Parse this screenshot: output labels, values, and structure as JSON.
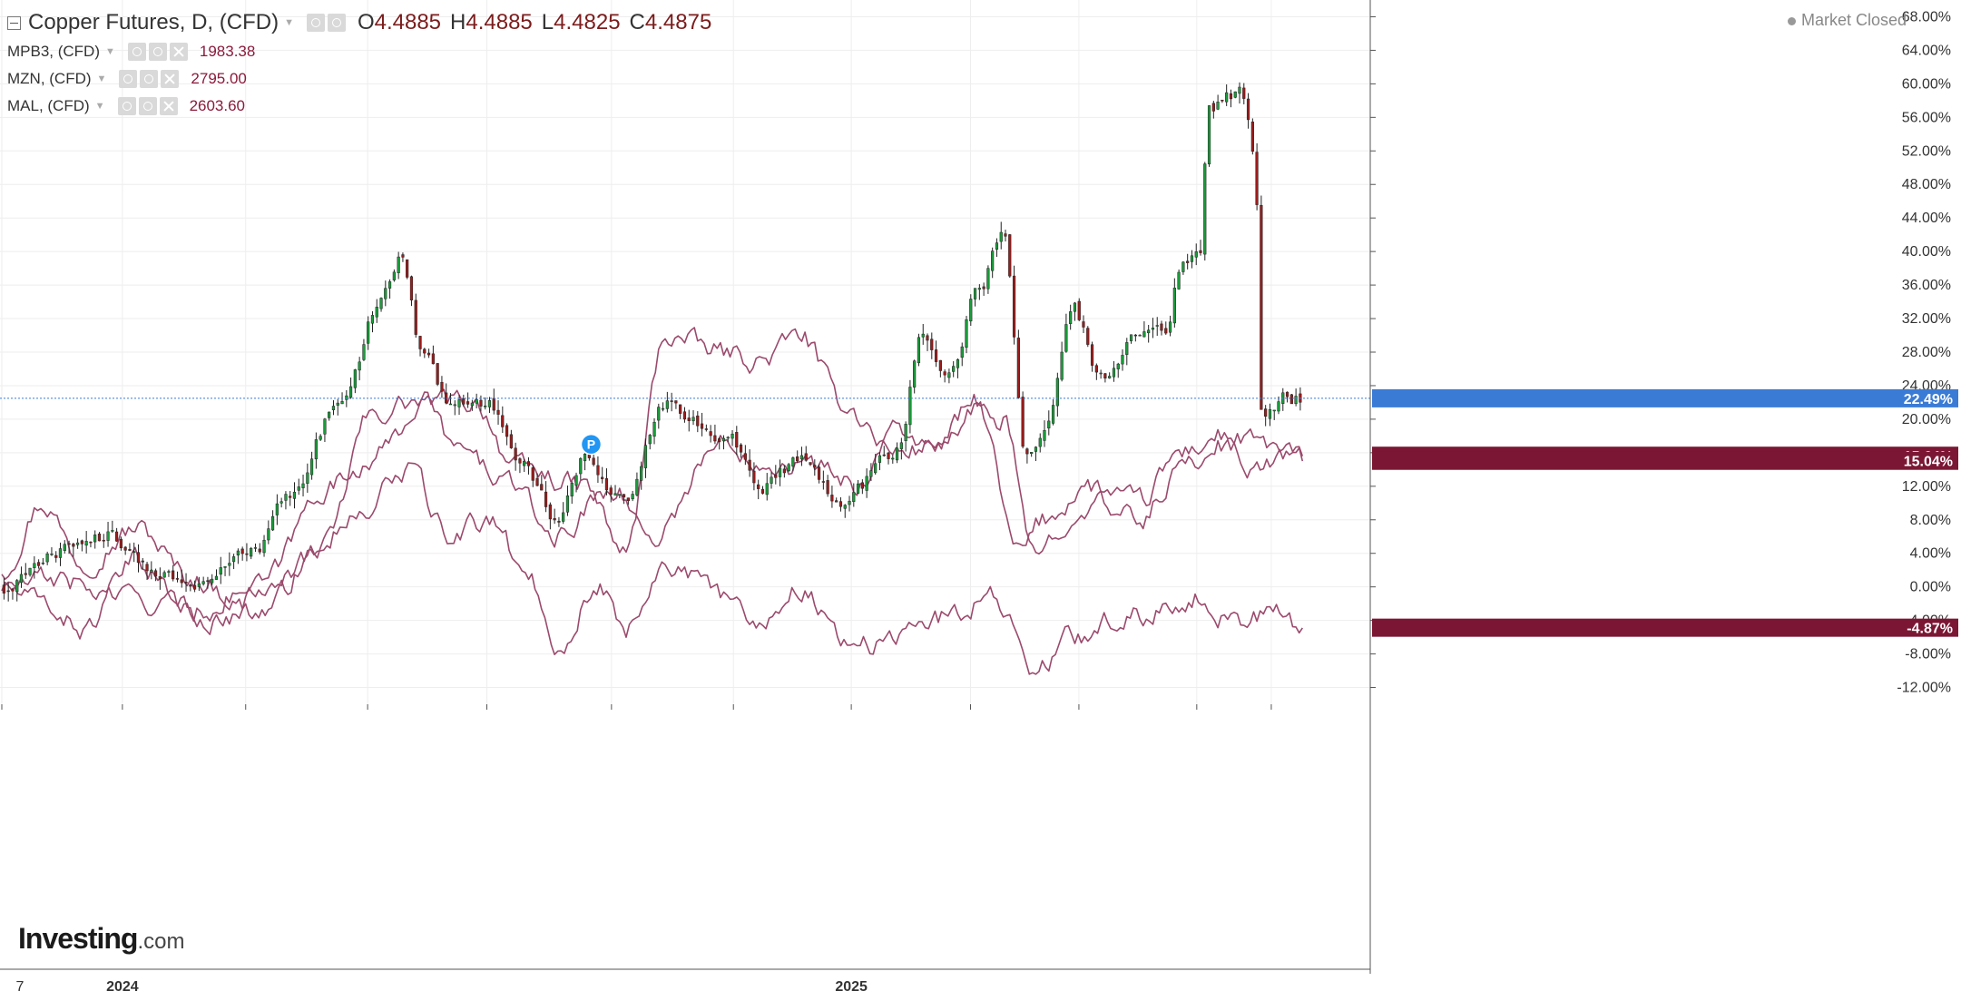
{
  "legend": {
    "main": {
      "symbol": "Copper Futures, D, (CFD)",
      "o_label": "O",
      "o": "4.4885",
      "h_label": "H",
      "h": "4.4885",
      "l_label": "L",
      "l": "4.4825",
      "c_label": "C",
      "c": "4.4875"
    },
    "overlays": [
      {
        "symbol": "MPB3, (CFD)",
        "value": "1983.38"
      },
      {
        "symbol": "MZN, (CFD)",
        "value": "2795.00"
      },
      {
        "symbol": "MAL, (CFD)",
        "value": "2603.60"
      }
    ]
  },
  "market_status": "Market Closed",
  "branding": {
    "logo_main": "Investing",
    "logo_suffix": ".com"
  },
  "icons": {
    "collapse": "collapse-icon",
    "eye": "eye-icon",
    "settings": "gear-icon",
    "remove": "close-icon",
    "dropdown": "chevron-down-icon",
    "marker": "p-marker-icon"
  },
  "colors": {
    "up": "#1a9c3a",
    "down": "#9c1c1c",
    "overlay": "#9b4a6c",
    "current_price": "#3a7bd5",
    "axis_tag": "#7b1734"
  },
  "chart_data": {
    "type": "line",
    "ylim": [
      -14,
      70
    ],
    "y_ticks": [
      "68.00%",
      "64.00%",
      "60.00%",
      "56.00%",
      "52.00%",
      "48.00%",
      "44.00%",
      "40.00%",
      "36.00%",
      "32.00%",
      "28.00%",
      "24.00%",
      "20.00%",
      "16.00%",
      "12.00%",
      "8.00%",
      "4.00%",
      "0.00%",
      "-4.00%",
      "-8.00%",
      "-12.00%"
    ],
    "x_tick_labels": [
      "7",
      "2024",
      "2025"
    ],
    "x_ticks": [
      {
        "t": 0,
        "label": "7"
      },
      {
        "t": 0.089,
        "label": "2024"
      },
      {
        "t": 0.18,
        "label": ""
      },
      {
        "t": 0.27,
        "label": ""
      },
      {
        "t": 0.358,
        "label": ""
      },
      {
        "t": 0.45,
        "label": ""
      },
      {
        "t": 0.54,
        "label": ""
      },
      {
        "t": 0.627,
        "label": "2025"
      },
      {
        "t": 0.715,
        "label": ""
      },
      {
        "t": 0.795,
        "label": ""
      },
      {
        "t": 0.882,
        "label": ""
      },
      {
        "t": 0.937,
        "label": ""
      }
    ],
    "price_line": 22.49,
    "axis_tags": [
      {
        "value": 22.49,
        "label": "22.49%",
        "color": "#3a7bd5"
      },
      {
        "value": 15.64,
        "label": "15.64%",
        "color": "#7b1734"
      },
      {
        "value": 15.04,
        "label": "15.04%",
        "color": "#7b1734"
      },
      {
        "value": -4.87,
        "label": "-4.87%",
        "color": "#7b1734"
      }
    ],
    "marker": {
      "t": 0.435,
      "value": 17.0,
      "label": "P"
    },
    "candles": {
      "name": "Copper Futures",
      "anchors": [
        [
          0,
          0
        ],
        [
          0.04,
          4
        ],
        [
          0.08,
          6
        ],
        [
          0.11,
          2
        ],
        [
          0.15,
          0.5
        ],
        [
          0.19,
          5
        ],
        [
          0.21,
          10
        ],
        [
          0.25,
          22
        ],
        [
          0.28,
          34
        ],
        [
          0.295,
          40
        ],
        [
          0.31,
          28
        ],
        [
          0.33,
          22
        ],
        [
          0.36,
          22
        ],
        [
          0.385,
          14
        ],
        [
          0.41,
          8
        ],
        [
          0.43,
          15
        ],
        [
          0.46,
          10
        ],
        [
          0.49,
          22
        ],
        [
          0.51,
          20
        ],
        [
          0.535,
          18
        ],
        [
          0.56,
          12
        ],
        [
          0.59,
          15
        ],
        [
          0.62,
          10
        ],
        [
          0.66,
          16
        ],
        [
          0.68,
          30
        ],
        [
          0.7,
          25
        ],
        [
          0.72,
          35
        ],
        [
          0.74,
          42
        ],
        [
          0.755,
          16
        ],
        [
          0.77,
          18
        ],
        [
          0.79,
          34
        ],
        [
          0.81,
          25
        ],
        [
          0.84,
          31
        ],
        [
          0.86,
          30
        ],
        [
          0.87,
          38
        ],
        [
          0.885,
          40
        ],
        [
          0.89,
          57
        ],
        [
          0.915,
          59
        ],
        [
          0.925,
          52
        ],
        [
          0.93,
          20
        ],
        [
          0.95,
          22.5
        ],
        [
          0.96,
          22.4
        ]
      ]
    },
    "series": [
      {
        "name": "MPB3",
        "anchors": [
          [
            0,
            2
          ],
          [
            0.03,
            10
          ],
          [
            0.06,
            3
          ],
          [
            0.1,
            7
          ],
          [
            0.14,
            1
          ],
          [
            0.19,
            -3
          ],
          [
            0.24,
            5
          ],
          [
            0.27,
            20
          ],
          [
            0.3,
            22
          ],
          [
            0.32,
            22
          ],
          [
            0.35,
            22
          ],
          [
            0.38,
            14
          ],
          [
            0.43,
            12
          ],
          [
            0.46,
            4
          ],
          [
            0.49,
            30
          ],
          [
            0.53,
            28
          ],
          [
            0.56,
            27
          ],
          [
            0.59,
            30
          ],
          [
            0.62,
            22
          ],
          [
            0.66,
            16
          ],
          [
            0.69,
            17
          ],
          [
            0.72,
            22
          ],
          [
            0.75,
            4
          ],
          [
            0.77,
            8
          ],
          [
            0.8,
            12
          ],
          [
            0.84,
            10
          ],
          [
            0.87,
            16
          ],
          [
            0.9,
            18
          ],
          [
            0.93,
            17
          ],
          [
            0.95,
            16
          ],
          [
            0.96,
            15.6
          ]
        ]
      },
      {
        "name": "MZN",
        "anchors": [
          [
            0,
            0
          ],
          [
            0.03,
            -2
          ],
          [
            0.06,
            -5
          ],
          [
            0.1,
            3
          ],
          [
            0.14,
            -3
          ],
          [
            0.19,
            0
          ],
          [
            0.24,
            12
          ],
          [
            0.28,
            16
          ],
          [
            0.31,
            22
          ],
          [
            0.34,
            16
          ],
          [
            0.37,
            13
          ],
          [
            0.41,
            6
          ],
          [
            0.45,
            12
          ],
          [
            0.48,
            6
          ],
          [
            0.53,
            17
          ],
          [
            0.57,
            15
          ],
          [
            0.61,
            14
          ],
          [
            0.63,
            12
          ],
          [
            0.66,
            19
          ],
          [
            0.69,
            16
          ],
          [
            0.72,
            21
          ],
          [
            0.74,
            20
          ],
          [
            0.76,
            4
          ],
          [
            0.8,
            10
          ],
          [
            0.84,
            8
          ],
          [
            0.87,
            14
          ],
          [
            0.9,
            17
          ],
          [
            0.93,
            14
          ],
          [
            0.95,
            16
          ],
          [
            0.96,
            15.0
          ]
        ]
      },
      {
        "name": "MAL",
        "anchors": [
          [
            0,
            0
          ],
          [
            0.04,
            1
          ],
          [
            0.08,
            -1
          ],
          [
            0.12,
            -2
          ],
          [
            0.16,
            -4
          ],
          [
            0.21,
            2
          ],
          [
            0.26,
            8
          ],
          [
            0.3,
            14
          ],
          [
            0.33,
            6
          ],
          [
            0.36,
            8
          ],
          [
            0.39,
            1
          ],
          [
            0.41,
            -7
          ],
          [
            0.44,
            0
          ],
          [
            0.46,
            -5
          ],
          [
            0.49,
            3
          ],
          [
            0.53,
            -1
          ],
          [
            0.56,
            -4
          ],
          [
            0.59,
            0
          ],
          [
            0.62,
            -6
          ],
          [
            0.65,
            -7
          ],
          [
            0.68,
            -4
          ],
          [
            0.71,
            -3
          ],
          [
            0.73,
            0
          ],
          [
            0.75,
            -5
          ],
          [
            0.76,
            -11
          ],
          [
            0.79,
            -6
          ],
          [
            0.82,
            -4
          ],
          [
            0.85,
            -3
          ],
          [
            0.88,
            -1
          ],
          [
            0.91,
            -4
          ],
          [
            0.94,
            -3
          ],
          [
            0.96,
            -4.9
          ]
        ]
      }
    ]
  }
}
